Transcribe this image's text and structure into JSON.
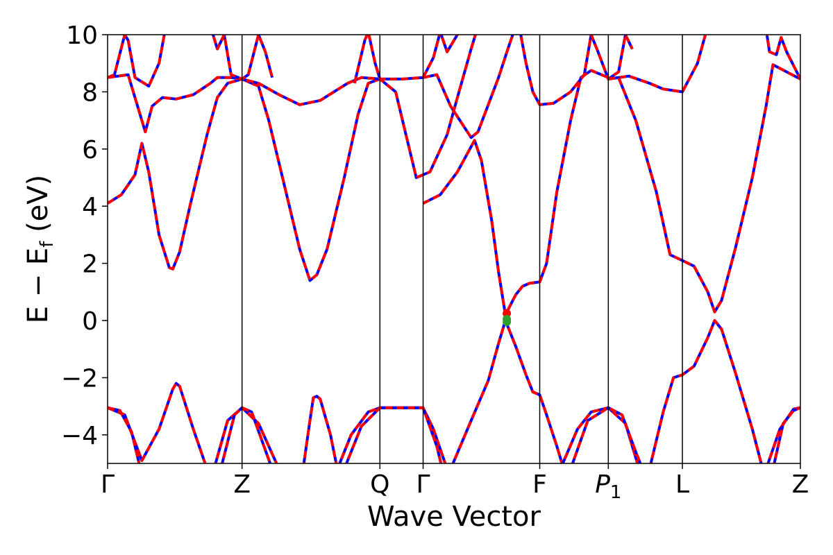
{
  "chart_data": {
    "type": "line",
    "title": "",
    "xlabel": "Wave Vector",
    "ylabel": "E − E",
    "ylabel_subscript": "f",
    "ylabel_unit": "(eV)",
    "ylim": [
      -5,
      10
    ],
    "xlim": [
      0,
      10.1
    ],
    "yticks": [
      -4,
      -2,
      0,
      2,
      4,
      6,
      8,
      10
    ],
    "ytick_labels": [
      "−4",
      "−2",
      "0",
      "2",
      "4",
      "6",
      "8",
      "10"
    ],
    "kpoints": [
      {
        "label": "Γ",
        "x": 0
      },
      {
        "label": "Z",
        "x": 1.96
      },
      {
        "label": "Q",
        "x": 3.97
      },
      {
        "label": "Γ",
        "x": 4.6
      },
      {
        "label": "F",
        "x": 6.3
      },
      {
        "label": "P",
        "sub": "1",
        "italic": true,
        "x": 7.3
      },
      {
        "label": "L",
        "x": 8.38
      },
      {
        "label": "Z",
        "x": 10.1
      }
    ],
    "series_colors": {
      "ref": "#0000ff",
      "model": "#ff0000"
    },
    "bands": [
      [
        [
          0,
          -3.05
        ],
        [
          0.25,
          -3.3
        ],
        [
          0.5,
          -4.9
        ],
        [
          0.75,
          -3.8
        ],
        [
          0.95,
          -2.4
        ],
        [
          1.0,
          -2.2
        ],
        [
          1.05,
          -2.3
        ],
        [
          1.25,
          -3.8
        ],
        [
          1.45,
          -5.2
        ]
      ],
      [
        [
          0,
          -3.05
        ],
        [
          0.18,
          -3.15
        ],
        [
          0.35,
          -3.9
        ],
        [
          0.48,
          -5.2
        ]
      ],
      [
        [
          1.55,
          -5.2
        ],
        [
          1.75,
          -3.5
        ],
        [
          1.96,
          -3.05
        ],
        [
          2.2,
          -3.6
        ],
        [
          2.5,
          -5.2
        ]
      ],
      [
        [
          1.65,
          -5.2
        ],
        [
          1.85,
          -3.3
        ],
        [
          1.96,
          -3.05
        ],
        [
          2.1,
          -3.2
        ],
        [
          2.4,
          -5.2
        ]
      ],
      [
        [
          2.85,
          -5.2
        ],
        [
          2.95,
          -3.5
        ],
        [
          3.0,
          -2.7
        ],
        [
          3.05,
          -2.65
        ],
        [
          3.1,
          -2.75
        ],
        [
          3.25,
          -4.0
        ],
        [
          3.35,
          -5.2
        ]
      ],
      [
        [
          3.35,
          -5.2
        ],
        [
          3.55,
          -4.0
        ],
        [
          3.8,
          -3.2
        ],
        [
          3.97,
          -3.05
        ],
        [
          4.3,
          -3.05
        ],
        [
          4.6,
          -3.05
        ],
        [
          4.75,
          -3.8
        ],
        [
          4.95,
          -5.2
        ]
      ],
      [
        [
          3.45,
          -5.2
        ],
        [
          3.7,
          -3.7
        ],
        [
          3.97,
          -3.05
        ],
        [
          4.6,
          -3.05
        ],
        [
          4.8,
          -4.4
        ],
        [
          4.88,
          -5.2
        ]
      ],
      [
        [
          5.0,
          -5.2
        ],
        [
          5.3,
          -3.5
        ],
        [
          5.55,
          -2.1
        ],
        [
          5.7,
          -0.8
        ],
        [
          5.8,
          0.0
        ],
        [
          5.95,
          -0.9
        ],
        [
          6.1,
          -1.9
        ],
        [
          6.2,
          -2.5
        ],
        [
          6.3,
          -2.6
        ],
        [
          6.4,
          -3.3
        ],
        [
          6.55,
          -4.4
        ],
        [
          6.65,
          -5.2
        ]
      ],
      [
        [
          4.6,
          4.1
        ],
        [
          4.85,
          4.4
        ],
        [
          5.1,
          5.2
        ],
        [
          5.35,
          6.3
        ],
        [
          5.45,
          5.6
        ],
        [
          5.6,
          3.5
        ],
        [
          5.7,
          1.7
        ],
        [
          5.8,
          0.2
        ],
        [
          5.95,
          0.9
        ],
        [
          6.05,
          1.2
        ],
        [
          6.15,
          1.3
        ],
        [
          6.3,
          1.35
        ],
        [
          6.4,
          2.0
        ],
        [
          6.55,
          4.5
        ],
        [
          6.75,
          7.0
        ],
        [
          6.9,
          8.5
        ],
        [
          7.05,
          8.75
        ],
        [
          7.3,
          8.5
        ]
      ],
      [
        [
          0,
          4.1
        ],
        [
          0.2,
          4.4
        ],
        [
          0.4,
          5.1
        ],
        [
          0.5,
          6.2
        ],
        [
          0.6,
          5.2
        ],
        [
          0.75,
          3.0
        ],
        [
          0.9,
          1.85
        ],
        [
          0.95,
          1.8
        ],
        [
          1.05,
          2.4
        ],
        [
          1.2,
          4.0
        ],
        [
          1.45,
          6.5
        ],
        [
          1.6,
          7.8
        ],
        [
          1.75,
          8.3
        ],
        [
          1.96,
          8.45
        ]
      ],
      [
        [
          1.96,
          8.45
        ],
        [
          2.2,
          8.2
        ],
        [
          2.35,
          7.0
        ],
        [
          2.55,
          5.0
        ],
        [
          2.8,
          2.5
        ],
        [
          2.95,
          1.4
        ],
        [
          3.05,
          1.6
        ],
        [
          3.2,
          2.5
        ],
        [
          3.45,
          5.0
        ],
        [
          3.65,
          7.2
        ],
        [
          3.8,
          8.3
        ],
        [
          3.97,
          8.45
        ]
      ],
      [
        [
          0,
          8.5
        ],
        [
          0.3,
          8.6
        ],
        [
          0.55,
          6.6
        ],
        [
          0.65,
          7.5
        ],
        [
          0.8,
          7.8
        ],
        [
          1.0,
          7.75
        ],
        [
          1.25,
          7.9
        ],
        [
          1.5,
          8.3
        ],
        [
          1.6,
          8.5
        ],
        [
          1.8,
          8.5
        ],
        [
          1.96,
          8.45
        ],
        [
          2.2,
          8.3
        ],
        [
          2.5,
          7.9
        ],
        [
          2.8,
          7.55
        ],
        [
          3.1,
          7.7
        ],
        [
          3.5,
          8.3
        ],
        [
          3.7,
          8.5
        ],
        [
          3.97,
          8.45
        ],
        [
          4.3,
          8.45
        ],
        [
          4.6,
          8.5
        ],
        [
          4.8,
          8.6
        ],
        [
          5.0,
          7.5
        ],
        [
          5.3,
          6.4
        ],
        [
          5.4,
          6.6
        ],
        [
          5.7,
          8.5
        ],
        [
          5.85,
          9.6
        ],
        [
          5.95,
          10.3
        ]
      ],
      [
        [
          0,
          8.5
        ],
        [
          0.1,
          8.6
        ],
        [
          0.25,
          10.0
        ],
        [
          0.3,
          9.8
        ],
        [
          0.4,
          8.5
        ],
        [
          0.6,
          8.2
        ],
        [
          0.75,
          9.0
        ],
        [
          0.85,
          10.3
        ]
      ],
      [
        [
          1.5,
          10.3
        ],
        [
          1.6,
          9.5
        ],
        [
          1.7,
          10.0
        ],
        [
          1.8,
          8.6
        ],
        [
          1.96,
          8.45
        ],
        [
          2.05,
          8.6
        ],
        [
          2.2,
          10.0
        ],
        [
          2.3,
          9.4
        ],
        [
          2.4,
          8.5
        ]
      ],
      [
        [
          3.6,
          8.3
        ],
        [
          3.75,
          9.8
        ],
        [
          3.8,
          10.1
        ],
        [
          3.9,
          9.0
        ],
        [
          3.97,
          8.45
        ],
        [
          4.2,
          8.0
        ],
        [
          4.35,
          6.5
        ],
        [
          4.5,
          5.0
        ],
        [
          4.7,
          5.2
        ],
        [
          4.95,
          6.5
        ],
        [
          5.1,
          7.8
        ],
        [
          5.3,
          9.5
        ],
        [
          5.4,
          10.3
        ]
      ],
      [
        [
          4.6,
          8.5
        ],
        [
          4.75,
          9.2
        ],
        [
          4.85,
          10.1
        ],
        [
          4.95,
          9.4
        ],
        [
          5.1,
          10.0
        ],
        [
          5.2,
          10.3
        ]
      ],
      [
        [
          6.0,
          10.3
        ],
        [
          6.1,
          9.0
        ],
        [
          6.2,
          8.0
        ],
        [
          6.3,
          7.55
        ],
        [
          6.5,
          7.6
        ],
        [
          6.75,
          8.0
        ],
        [
          6.95,
          8.6
        ],
        [
          7.05,
          10.0
        ],
        [
          7.15,
          9.4
        ],
        [
          7.3,
          8.45
        ],
        [
          7.45,
          8.7
        ],
        [
          7.55,
          10.0
        ],
        [
          7.65,
          9.5
        ]
      ],
      [
        [
          7.3,
          8.45
        ],
        [
          7.6,
          8.55
        ],
        [
          7.9,
          8.3
        ],
        [
          8.1,
          8.1
        ],
        [
          8.38,
          8.0
        ],
        [
          8.6,
          9.0
        ],
        [
          8.75,
          10.3
        ]
      ],
      [
        [
          7.3,
          8.45
        ],
        [
          7.45,
          8.5
        ],
        [
          7.7,
          7.0
        ],
        [
          8.0,
          4.5
        ],
        [
          8.2,
          2.3
        ],
        [
          8.38,
          2.1
        ],
        [
          8.55,
          1.9
        ],
        [
          8.75,
          1.0
        ],
        [
          8.85,
          0.3
        ],
        [
          8.95,
          0.7
        ],
        [
          9.15,
          2.5
        ],
        [
          9.4,
          5.0
        ],
        [
          9.6,
          7.5
        ],
        [
          9.7,
          8.95
        ],
        [
          9.9,
          8.7
        ],
        [
          10.1,
          8.45
        ]
      ],
      [
        [
          6.6,
          -5.2
        ],
        [
          6.85,
          -3.8
        ],
        [
          7.05,
          -3.2
        ],
        [
          7.3,
          -3.05
        ],
        [
          7.55,
          -3.6
        ],
        [
          7.75,
          -5.2
        ]
      ],
      [
        [
          6.75,
          -5.2
        ],
        [
          7.0,
          -3.5
        ],
        [
          7.3,
          -3.05
        ],
        [
          7.5,
          -3.3
        ],
        [
          7.7,
          -4.6
        ],
        [
          7.8,
          -5.2
        ]
      ],
      [
        [
          7.9,
          -5.2
        ],
        [
          8.1,
          -3.2
        ],
        [
          8.25,
          -2.0
        ],
        [
          8.38,
          -1.9
        ],
        [
          8.55,
          -1.6
        ],
        [
          8.75,
          -0.6
        ],
        [
          8.85,
          0.0
        ],
        [
          8.95,
          -0.3
        ],
        [
          9.15,
          -1.8
        ],
        [
          9.4,
          -3.8
        ],
        [
          9.55,
          -5.2
        ]
      ],
      [
        [
          9.6,
          -5.2
        ],
        [
          9.8,
          -3.8
        ],
        [
          10.0,
          -3.1
        ],
        [
          10.1,
          -3.05
        ]
      ],
      [
        [
          9.7,
          -5.2
        ],
        [
          9.85,
          -3.6
        ],
        [
          10.0,
          -3.15
        ],
        [
          10.1,
          -3.05
        ]
      ],
      [
        [
          9.6,
          10.2
        ],
        [
          9.65,
          9.4
        ],
        [
          9.75,
          9.3
        ],
        [
          9.82,
          9.9
        ],
        [
          9.9,
          9.4
        ],
        [
          10.1,
          8.45
        ]
      ]
    ],
    "markers": [
      {
        "x": 5.82,
        "y": 0.25,
        "color": "#ff0000"
      },
      {
        "x": 5.82,
        "y": 0.05,
        "color": "#2ca02c"
      },
      {
        "x": 5.82,
        "y": -0.05,
        "color": "#2ca02c"
      }
    ]
  }
}
